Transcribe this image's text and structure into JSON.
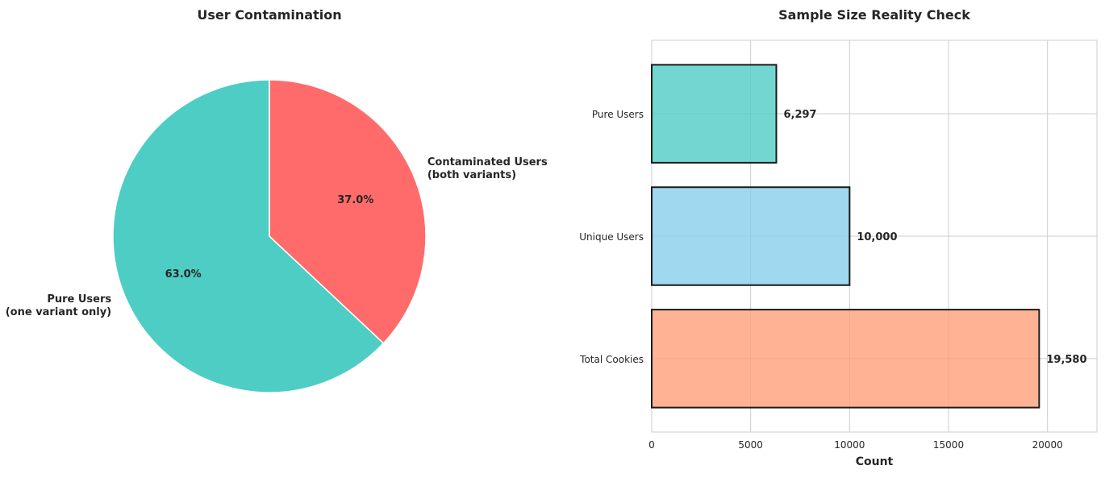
{
  "chart_data": [
    {
      "type": "pie",
      "title": "User Contamination",
      "slices": [
        {
          "label_lines": [
            "Pure Users",
            "(one variant only)"
          ],
          "value": 63.0,
          "pct_label": "63.0%",
          "color": "#4ECDC4"
        },
        {
          "label_lines": [
            "Contaminated Users",
            "(both variants)"
          ],
          "value": 37.0,
          "pct_label": "37.0%",
          "color": "#FF6B6B"
        }
      ],
      "start_angle_deg": 90,
      "direction": "counterclockwise",
      "edge_color": "#ffffff"
    },
    {
      "type": "bar",
      "orientation": "horizontal",
      "title": "Sample Size Reality Check",
      "xlabel": "Count",
      "ylabel": "",
      "categories": [
        "Pure Users",
        "Unique Users",
        "Total Cookies"
      ],
      "values": [
        6297,
        10000,
        19580
      ],
      "value_labels": [
        "6,297",
        "10,000",
        "19,580"
      ],
      "colors": [
        "#4ECDC4",
        "#87CEEB",
        "#FFA07A"
      ],
      "bar_opacity": 0.8,
      "edge_color": "#1a1a1a",
      "xlim": [
        0,
        22500
      ],
      "xticks": [
        0,
        5000,
        10000,
        15000,
        20000
      ],
      "xtick_labels": [
        "0",
        "5000",
        "10000",
        "15000",
        "20000"
      ],
      "grid": true
    }
  ]
}
